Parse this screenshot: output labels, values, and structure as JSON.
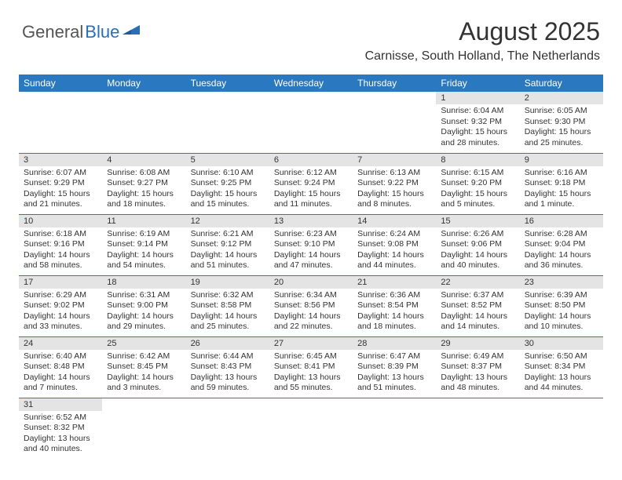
{
  "brand": {
    "part1": "General",
    "part2": "Blue"
  },
  "title": "August 2025",
  "location": "Carnisse, South Holland, The Netherlands",
  "headers": [
    "Sunday",
    "Monday",
    "Tuesday",
    "Wednesday",
    "Thursday",
    "Friday",
    "Saturday"
  ],
  "colors": {
    "header_bg": "#2a79c0",
    "daynum_bg": "#e4e4e4",
    "text": "#333333",
    "brand_gray": "#555555",
    "brand_blue": "#2a6fb5"
  },
  "weeks": [
    [
      {
        "n": "",
        "sr": "",
        "ss": "",
        "dl": ""
      },
      {
        "n": "",
        "sr": "",
        "ss": "",
        "dl": ""
      },
      {
        "n": "",
        "sr": "",
        "ss": "",
        "dl": ""
      },
      {
        "n": "",
        "sr": "",
        "ss": "",
        "dl": ""
      },
      {
        "n": "",
        "sr": "",
        "ss": "",
        "dl": ""
      },
      {
        "n": "1",
        "sr": "Sunrise: 6:04 AM",
        "ss": "Sunset: 9:32 PM",
        "dl": "Daylight: 15 hours and 28 minutes."
      },
      {
        "n": "2",
        "sr": "Sunrise: 6:05 AM",
        "ss": "Sunset: 9:30 PM",
        "dl": "Daylight: 15 hours and 25 minutes."
      }
    ],
    [
      {
        "n": "3",
        "sr": "Sunrise: 6:07 AM",
        "ss": "Sunset: 9:29 PM",
        "dl": "Daylight: 15 hours and 21 minutes."
      },
      {
        "n": "4",
        "sr": "Sunrise: 6:08 AM",
        "ss": "Sunset: 9:27 PM",
        "dl": "Daylight: 15 hours and 18 minutes."
      },
      {
        "n": "5",
        "sr": "Sunrise: 6:10 AM",
        "ss": "Sunset: 9:25 PM",
        "dl": "Daylight: 15 hours and 15 minutes."
      },
      {
        "n": "6",
        "sr": "Sunrise: 6:12 AM",
        "ss": "Sunset: 9:24 PM",
        "dl": "Daylight: 15 hours and 11 minutes."
      },
      {
        "n": "7",
        "sr": "Sunrise: 6:13 AM",
        "ss": "Sunset: 9:22 PM",
        "dl": "Daylight: 15 hours and 8 minutes."
      },
      {
        "n": "8",
        "sr": "Sunrise: 6:15 AM",
        "ss": "Sunset: 9:20 PM",
        "dl": "Daylight: 15 hours and 5 minutes."
      },
      {
        "n": "9",
        "sr": "Sunrise: 6:16 AM",
        "ss": "Sunset: 9:18 PM",
        "dl": "Daylight: 15 hours and 1 minute."
      }
    ],
    [
      {
        "n": "10",
        "sr": "Sunrise: 6:18 AM",
        "ss": "Sunset: 9:16 PM",
        "dl": "Daylight: 14 hours and 58 minutes."
      },
      {
        "n": "11",
        "sr": "Sunrise: 6:19 AM",
        "ss": "Sunset: 9:14 PM",
        "dl": "Daylight: 14 hours and 54 minutes."
      },
      {
        "n": "12",
        "sr": "Sunrise: 6:21 AM",
        "ss": "Sunset: 9:12 PM",
        "dl": "Daylight: 14 hours and 51 minutes."
      },
      {
        "n": "13",
        "sr": "Sunrise: 6:23 AM",
        "ss": "Sunset: 9:10 PM",
        "dl": "Daylight: 14 hours and 47 minutes."
      },
      {
        "n": "14",
        "sr": "Sunrise: 6:24 AM",
        "ss": "Sunset: 9:08 PM",
        "dl": "Daylight: 14 hours and 44 minutes."
      },
      {
        "n": "15",
        "sr": "Sunrise: 6:26 AM",
        "ss": "Sunset: 9:06 PM",
        "dl": "Daylight: 14 hours and 40 minutes."
      },
      {
        "n": "16",
        "sr": "Sunrise: 6:28 AM",
        "ss": "Sunset: 9:04 PM",
        "dl": "Daylight: 14 hours and 36 minutes."
      }
    ],
    [
      {
        "n": "17",
        "sr": "Sunrise: 6:29 AM",
        "ss": "Sunset: 9:02 PM",
        "dl": "Daylight: 14 hours and 33 minutes."
      },
      {
        "n": "18",
        "sr": "Sunrise: 6:31 AM",
        "ss": "Sunset: 9:00 PM",
        "dl": "Daylight: 14 hours and 29 minutes."
      },
      {
        "n": "19",
        "sr": "Sunrise: 6:32 AM",
        "ss": "Sunset: 8:58 PM",
        "dl": "Daylight: 14 hours and 25 minutes."
      },
      {
        "n": "20",
        "sr": "Sunrise: 6:34 AM",
        "ss": "Sunset: 8:56 PM",
        "dl": "Daylight: 14 hours and 22 minutes."
      },
      {
        "n": "21",
        "sr": "Sunrise: 6:36 AM",
        "ss": "Sunset: 8:54 PM",
        "dl": "Daylight: 14 hours and 18 minutes."
      },
      {
        "n": "22",
        "sr": "Sunrise: 6:37 AM",
        "ss": "Sunset: 8:52 PM",
        "dl": "Daylight: 14 hours and 14 minutes."
      },
      {
        "n": "23",
        "sr": "Sunrise: 6:39 AM",
        "ss": "Sunset: 8:50 PM",
        "dl": "Daylight: 14 hours and 10 minutes."
      }
    ],
    [
      {
        "n": "24",
        "sr": "Sunrise: 6:40 AM",
        "ss": "Sunset: 8:48 PM",
        "dl": "Daylight: 14 hours and 7 minutes."
      },
      {
        "n": "25",
        "sr": "Sunrise: 6:42 AM",
        "ss": "Sunset: 8:45 PM",
        "dl": "Daylight: 14 hours and 3 minutes."
      },
      {
        "n": "26",
        "sr": "Sunrise: 6:44 AM",
        "ss": "Sunset: 8:43 PM",
        "dl": "Daylight: 13 hours and 59 minutes."
      },
      {
        "n": "27",
        "sr": "Sunrise: 6:45 AM",
        "ss": "Sunset: 8:41 PM",
        "dl": "Daylight: 13 hours and 55 minutes."
      },
      {
        "n": "28",
        "sr": "Sunrise: 6:47 AM",
        "ss": "Sunset: 8:39 PM",
        "dl": "Daylight: 13 hours and 51 minutes."
      },
      {
        "n": "29",
        "sr": "Sunrise: 6:49 AM",
        "ss": "Sunset: 8:37 PM",
        "dl": "Daylight: 13 hours and 48 minutes."
      },
      {
        "n": "30",
        "sr": "Sunrise: 6:50 AM",
        "ss": "Sunset: 8:34 PM",
        "dl": "Daylight: 13 hours and 44 minutes."
      }
    ],
    [
      {
        "n": "31",
        "sr": "Sunrise: 6:52 AM",
        "ss": "Sunset: 8:32 PM",
        "dl": "Daylight: 13 hours and 40 minutes."
      },
      {
        "n": "",
        "sr": "",
        "ss": "",
        "dl": ""
      },
      {
        "n": "",
        "sr": "",
        "ss": "",
        "dl": ""
      },
      {
        "n": "",
        "sr": "",
        "ss": "",
        "dl": ""
      },
      {
        "n": "",
        "sr": "",
        "ss": "",
        "dl": ""
      },
      {
        "n": "",
        "sr": "",
        "ss": "",
        "dl": ""
      },
      {
        "n": "",
        "sr": "",
        "ss": "",
        "dl": ""
      }
    ]
  ]
}
